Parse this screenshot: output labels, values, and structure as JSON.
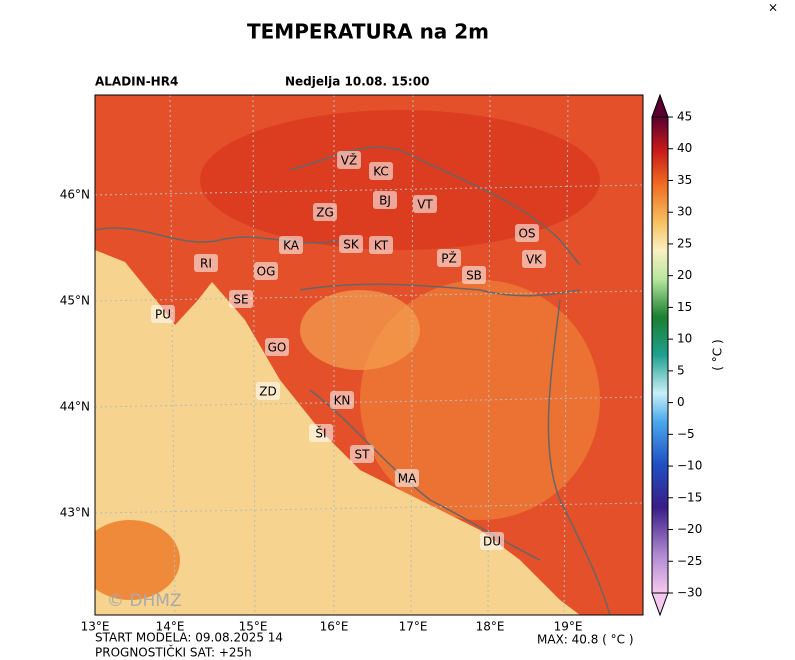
{
  "header": {
    "title": "TEMPERATURA na 2m",
    "close": "×",
    "model": "ALADIN-HR4",
    "valid": "Nedjelja 10.08. 15:00"
  },
  "map": {
    "lat_labels": [
      "46°N",
      "45°N",
      "44°N",
      "43°N"
    ],
    "lon_labels": [
      "13°E",
      "14°E",
      "15°E",
      "16°E",
      "17°E",
      "18°E",
      "19°E"
    ],
    "cities": [
      "VŽ",
      "KC",
      "BJ",
      "VT",
      "ZG",
      "KA",
      "SK",
      "KT",
      "OS",
      "PŽ",
      "VK",
      "SB",
      "RI",
      "OG",
      "SE",
      "PU",
      "GO",
      "ZD",
      "KN",
      "ŠI",
      "ST",
      "MA",
      "DU"
    ],
    "watermark": "© DHMZ"
  },
  "colorbar": {
    "label": "( °C )",
    "lim": [
      -30,
      45
    ],
    "ticks": [
      45,
      40,
      35,
      30,
      25,
      20,
      15,
      10,
      5,
      0,
      {
        "value": -5,
        "label": "−5"
      },
      {
        "value": -10,
        "label": "−10"
      },
      {
        "value": -15,
        "label": "−15"
      },
      {
        "value": -20,
        "label": "−20"
      },
      {
        "value": -25,
        "label": "−25"
      },
      {
        "value": -30,
        "label": "−30"
      }
    ]
  },
  "footer": {
    "start": "START MODELA: 09.08.2025 14",
    "hour": "PROGNOSTIČKI SAT: +25h",
    "max": "MAX: 40.8 ( °C )"
  }
}
